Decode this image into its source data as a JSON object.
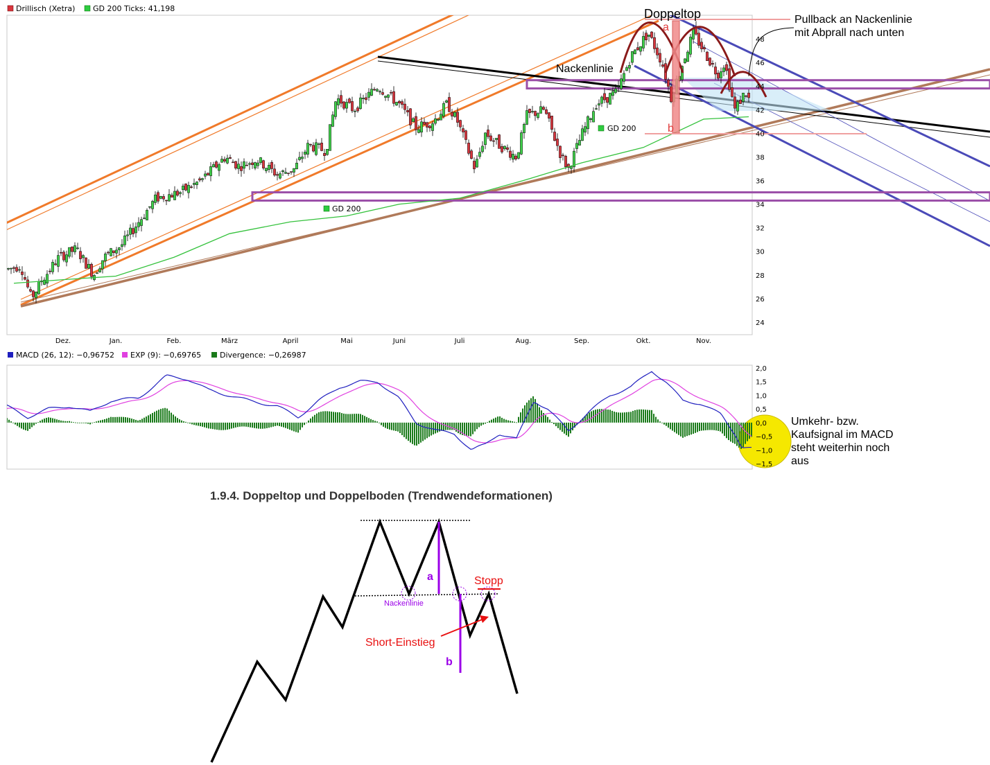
{
  "price_panel": {
    "legend": [
      {
        "label": "Drillisch (Xetra)",
        "color": "#d9363e"
      },
      {
        "label": "GD 200 Ticks: 41,198",
        "color": "#2ecc40"
      }
    ],
    "y_ticks": [
      "24",
      "26",
      "28",
      "30",
      "32",
      "34",
      "36",
      "38",
      "40",
      "42",
      "44",
      "46",
      "48"
    ],
    "x_ticks": [
      "Dez.",
      "Jan.",
      "Feb.",
      "März",
      "April",
      "Mai",
      "Juni",
      "Juli",
      "Aug.",
      "Sep.",
      "Okt.",
      "Nov."
    ],
    "ma_labels": [
      "GD 200",
      "GD 200"
    ],
    "annotations": {
      "doppeltop": "Doppeltop",
      "nackenlinie": "Nackenlinie",
      "a": "a",
      "b": "b",
      "pullback_1": "Pullback an Nackenlinie",
      "pullback_2": "mit Abprall nach unten"
    }
  },
  "macd_panel": {
    "legend": [
      {
        "label": "MACD (26, 12): −0,96752",
        "color": "#1f1fbf"
      },
      {
        "label": "EXP (9): −0,69765",
        "color": "#e040e0"
      },
      {
        "label": "Divergence: −0,26987",
        "color": "#1a7a1a"
      }
    ],
    "y_ticks": [
      "2,0",
      "1,5",
      "1,0",
      "0,5",
      "0,0",
      "−0,5",
      "−1,0",
      "−1,5"
    ],
    "note": [
      "Umkehr- bzw.",
      "Kaufsignal im MACD",
      "steht weiterhin noch",
      "aus"
    ]
  },
  "diagram": {
    "title": "1.9.4. Doppeltop und Doppelboden (Trendwendeformationen)",
    "label_a": "a",
    "label_b": "b",
    "nackenlinie": "Nackenlinie",
    "stopp": "Stopp",
    "short_einstieg": "Short-Einstieg"
  },
  "colors": {
    "candle_up": "#3fd24a",
    "candle_down": "#d9363e",
    "orange_channel": "#f07a2a",
    "brown_trend": "#b07a5a",
    "purple_zone": "#9b4fa8",
    "blue_channel": "#4a4ab8",
    "dark_red_arcs": "#8a1a1a",
    "macd_line": "#1f1fbf",
    "signal_line": "#e040e0",
    "histogram": "#1a7a1a",
    "highlight": "#f5e800"
  },
  "chart_data": [
    {
      "type": "candlestick",
      "title": "Drillisch (Xetra)",
      "x_categories": [
        "Dez.",
        "Jan.",
        "Feb.",
        "März",
        "April",
        "Mai",
        "Juni",
        "Juli",
        "Aug.",
        "Sep.",
        "Okt.",
        "Nov."
      ],
      "series": [
        {
          "name": "Drillisch (Xetra)",
          "approx_close_by_month": [
            28.5,
            28.8,
            33.5,
            37.5,
            37.0,
            43.0,
            40.5,
            39.5,
            38.0,
            41.5,
            47.5,
            42.5
          ]
        },
        {
          "name": "GD 200",
          "approx_by_month": [
            27.5,
            27.8,
            29.5,
            31.5,
            32.5,
            33.0,
            34.0,
            34.5,
            36.0,
            37.5,
            38.8,
            41.2
          ]
        }
      ],
      "ylim": [
        24,
        50
      ],
      "horizontal_zones": [
        [
          34.3,
          35.0
        ],
        [
          43.8,
          44.5
        ]
      ]
    },
    {
      "type": "line",
      "title": "MACD",
      "series": [
        {
          "name": "MACD (26, 12)",
          "last": -0.96752
        },
        {
          "name": "EXP (9)",
          "last": -0.69765
        },
        {
          "name": "Divergence",
          "last": -0.26987
        }
      ],
      "ylim": [
        -1.5,
        2.0
      ]
    }
  ]
}
